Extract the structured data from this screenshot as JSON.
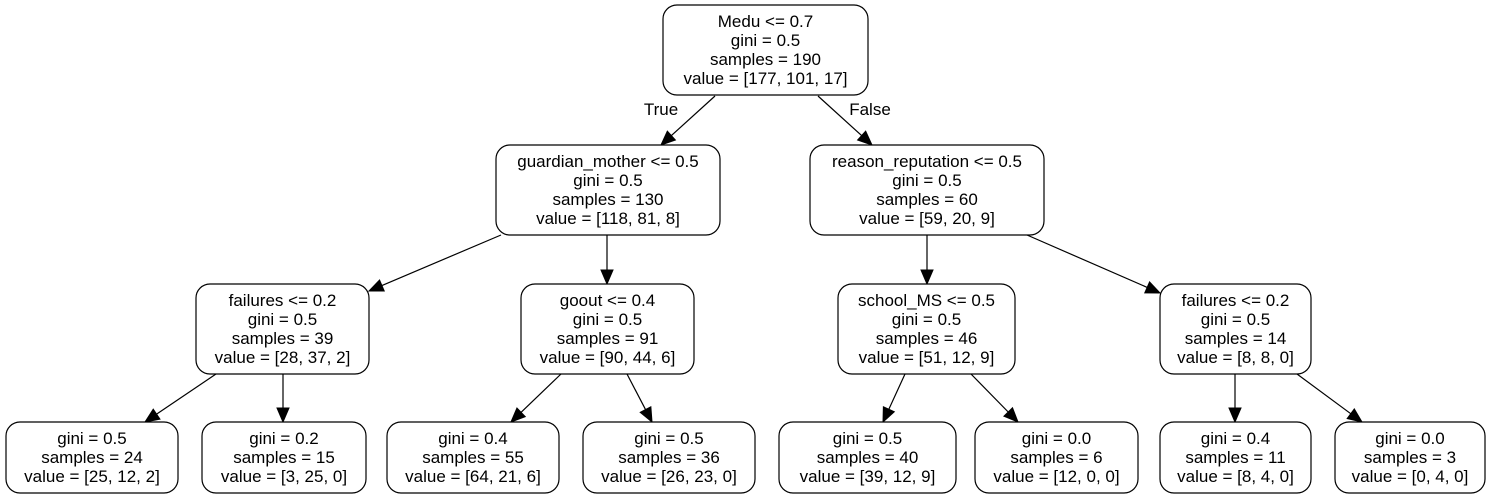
{
  "diagram": {
    "type": "decision-tree",
    "nodes": [
      {
        "id": "n0",
        "lines": [
          "Medu <= 0.7",
          "gini = 0.5",
          "samples = 190",
          "value = [177, 101, 17]"
        ]
      },
      {
        "id": "n1",
        "lines": [
          "guardian_mother <= 0.5",
          "gini = 0.5",
          "samples = 130",
          "value = [118, 81, 8]"
        ]
      },
      {
        "id": "n2",
        "lines": [
          "reason_reputation <= 0.5",
          "gini = 0.5",
          "samples = 60",
          "value = [59, 20, 9]"
        ]
      },
      {
        "id": "n3",
        "lines": [
          "failures <= 0.2",
          "gini = 0.5",
          "samples = 39",
          "value = [28, 37, 2]"
        ]
      },
      {
        "id": "n4",
        "lines": [
          "goout <= 0.4",
          "gini = 0.5",
          "samples = 91",
          "value = [90, 44, 6]"
        ]
      },
      {
        "id": "n5",
        "lines": [
          "school_MS <= 0.5",
          "gini = 0.5",
          "samples = 46",
          "value = [51, 12, 9]"
        ]
      },
      {
        "id": "n6",
        "lines": [
          "failures <= 0.2",
          "gini = 0.5",
          "samples = 14",
          "value = [8, 8, 0]"
        ]
      },
      {
        "id": "n7",
        "lines": [
          "gini = 0.5",
          "samples = 24",
          "value = [25, 12, 2]"
        ]
      },
      {
        "id": "n8",
        "lines": [
          "gini = 0.2",
          "samples = 15",
          "value = [3, 25, 0]"
        ]
      },
      {
        "id": "n9",
        "lines": [
          "gini = 0.4",
          "samples = 55",
          "value = [64, 21, 6]"
        ]
      },
      {
        "id": "n10",
        "lines": [
          "gini = 0.5",
          "samples = 36",
          "value = [26, 23, 0]"
        ]
      },
      {
        "id": "n11",
        "lines": [
          "gini = 0.5",
          "samples = 40",
          "value = [39, 12, 9]"
        ]
      },
      {
        "id": "n12",
        "lines": [
          "gini = 0.0",
          "samples = 6",
          "value = [12, 0, 0]"
        ]
      },
      {
        "id": "n13",
        "lines": [
          "gini = 0.4",
          "samples = 11",
          "value = [8, 4, 0]"
        ]
      },
      {
        "id": "n14",
        "lines": [
          "gini = 0.0",
          "samples = 3",
          "value = [0, 4, 0]"
        ]
      }
    ],
    "edges": [
      {
        "from": "n0",
        "to": "n1",
        "label": "True"
      },
      {
        "from": "n0",
        "to": "n2",
        "label": "False"
      },
      {
        "from": "n1",
        "to": "n3",
        "label": ""
      },
      {
        "from": "n1",
        "to": "n4",
        "label": ""
      },
      {
        "from": "n2",
        "to": "n5",
        "label": ""
      },
      {
        "from": "n2",
        "to": "n6",
        "label": ""
      },
      {
        "from": "n3",
        "to": "n7",
        "label": ""
      },
      {
        "from": "n3",
        "to": "n8",
        "label": ""
      },
      {
        "from": "n4",
        "to": "n9",
        "label": ""
      },
      {
        "from": "n4",
        "to": "n10",
        "label": ""
      },
      {
        "from": "n5",
        "to": "n11",
        "label": ""
      },
      {
        "from": "n5",
        "to": "n12",
        "label": ""
      },
      {
        "from": "n6",
        "to": "n13",
        "label": ""
      },
      {
        "from": "n6",
        "to": "n14",
        "label": ""
      }
    ]
  }
}
